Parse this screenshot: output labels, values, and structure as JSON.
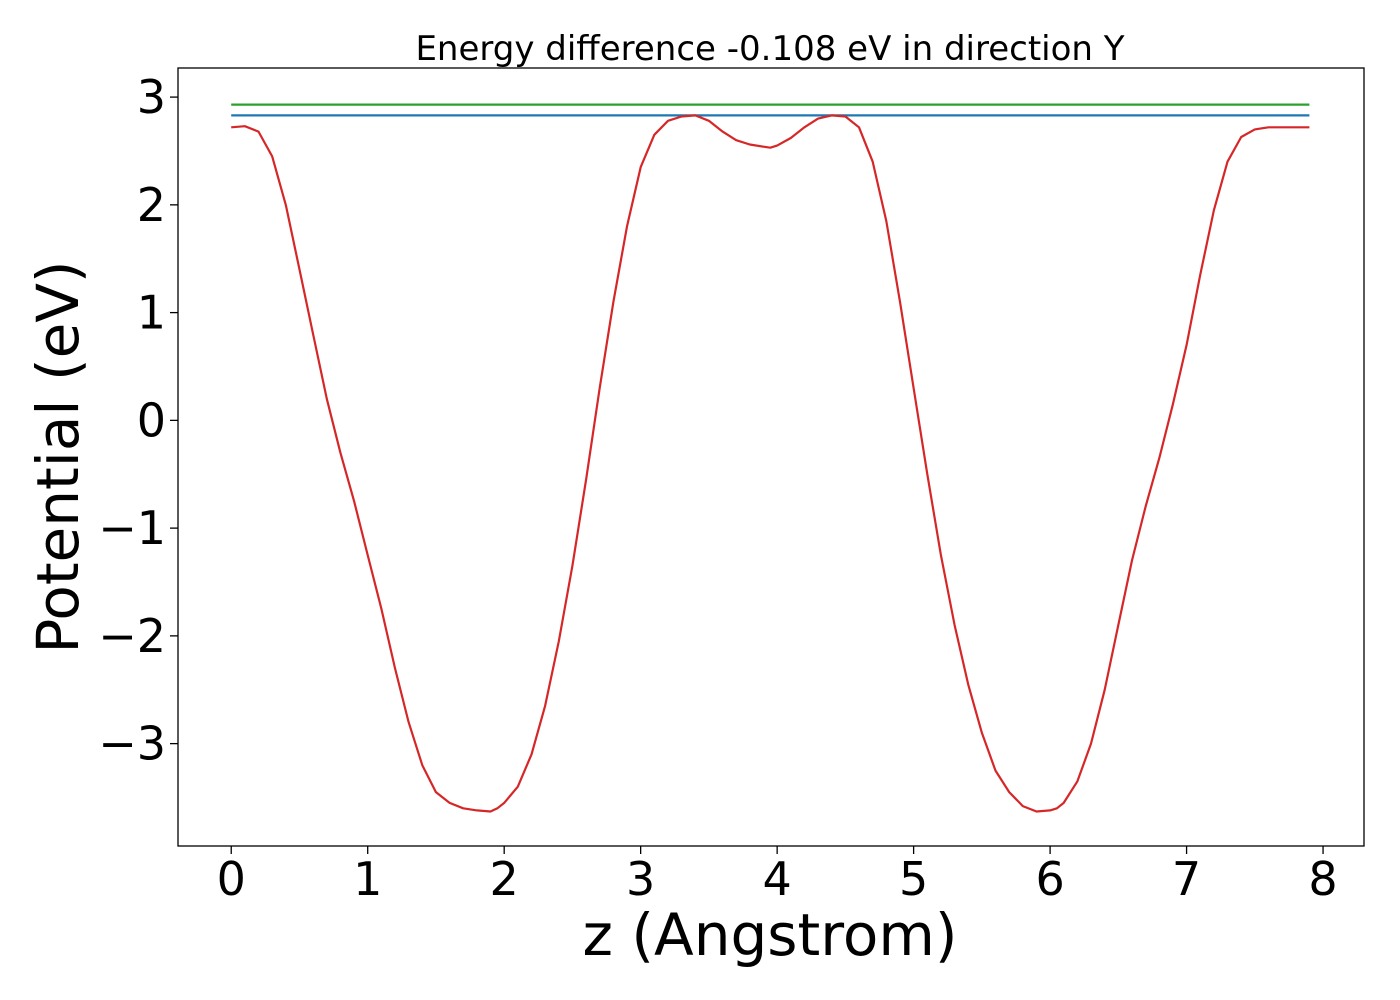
{
  "chart_data": {
    "type": "line",
    "title": "Energy difference -0.108 eV in direction Y",
    "xlabel": "z (Angstrom)",
    "ylabel": "Potential (eV)",
    "xlim": [
      -0.39,
      8.3
    ],
    "ylim": [
      -3.95,
      3.27
    ],
    "xticks": [
      0,
      1,
      2,
      3,
      4,
      5,
      6,
      7,
      8
    ],
    "xtick_labels": [
      "0",
      "1",
      "2",
      "3",
      "4",
      "5",
      "6",
      "7",
      "8"
    ],
    "yticks": [
      -3,
      -2,
      -1,
      0,
      1,
      2,
      3
    ],
    "ytick_labels": [
      "−3",
      "−2",
      "−1",
      "0",
      "1",
      "2",
      "3"
    ],
    "grid": false,
    "legend": "none",
    "series": [
      {
        "color": "#2ca02c",
        "x": [
          0,
          7.9
        ],
        "y": [
          2.93,
          2.93
        ]
      },
      {
        "color": "#1f77b4",
        "x": [
          0,
          7.9
        ],
        "y": [
          2.83,
          2.83
        ]
      },
      {
        "color": "#d62728",
        "x": [
          0.0,
          0.1,
          0.2,
          0.3,
          0.4,
          0.5,
          0.6,
          0.7,
          0.8,
          0.9,
          1.0,
          1.1,
          1.2,
          1.3,
          1.4,
          1.5,
          1.6,
          1.7,
          1.8,
          1.9,
          1.95,
          2.0,
          2.1,
          2.2,
          2.3,
          2.4,
          2.5,
          2.6,
          2.7,
          2.8,
          2.9,
          3.0,
          3.1,
          3.2,
          3.3,
          3.4,
          3.5,
          3.6,
          3.7,
          3.8,
          3.9,
          3.95,
          4.0,
          4.1,
          4.2,
          4.3,
          4.4,
          4.5,
          4.6,
          4.7,
          4.8,
          4.9,
          5.0,
          5.1,
          5.2,
          5.3,
          5.4,
          5.5,
          5.6,
          5.7,
          5.8,
          5.9,
          6.0,
          6.05,
          6.1,
          6.2,
          6.3,
          6.4,
          6.5,
          6.6,
          6.7,
          6.8,
          6.9,
          7.0,
          7.1,
          7.2,
          7.3,
          7.4,
          7.5,
          7.6,
          7.7,
          7.8,
          7.9
        ],
        "y": [
          2.72,
          2.73,
          2.68,
          2.45,
          2.0,
          1.4,
          0.8,
          0.2,
          -0.3,
          -0.75,
          -1.25,
          -1.75,
          -2.3,
          -2.8,
          -3.2,
          -3.45,
          -3.55,
          -3.6,
          -3.62,
          -3.63,
          -3.6,
          -3.55,
          -3.4,
          -3.1,
          -2.65,
          -2.05,
          -1.35,
          -0.55,
          0.3,
          1.1,
          1.8,
          2.35,
          2.65,
          2.78,
          2.82,
          2.83,
          2.78,
          2.68,
          2.6,
          2.56,
          2.54,
          2.53,
          2.55,
          2.62,
          2.72,
          2.8,
          2.83,
          2.82,
          2.72,
          2.4,
          1.85,
          1.1,
          0.3,
          -0.5,
          -1.25,
          -1.9,
          -2.45,
          -2.9,
          -3.25,
          -3.45,
          -3.58,
          -3.63,
          -3.62,
          -3.6,
          -3.55,
          -3.35,
          -3.0,
          -2.5,
          -1.9,
          -1.3,
          -0.8,
          -0.35,
          0.15,
          0.7,
          1.35,
          1.95,
          2.4,
          2.63,
          2.7,
          2.72,
          2.72,
          2.72,
          2.72
        ]
      }
    ]
  }
}
